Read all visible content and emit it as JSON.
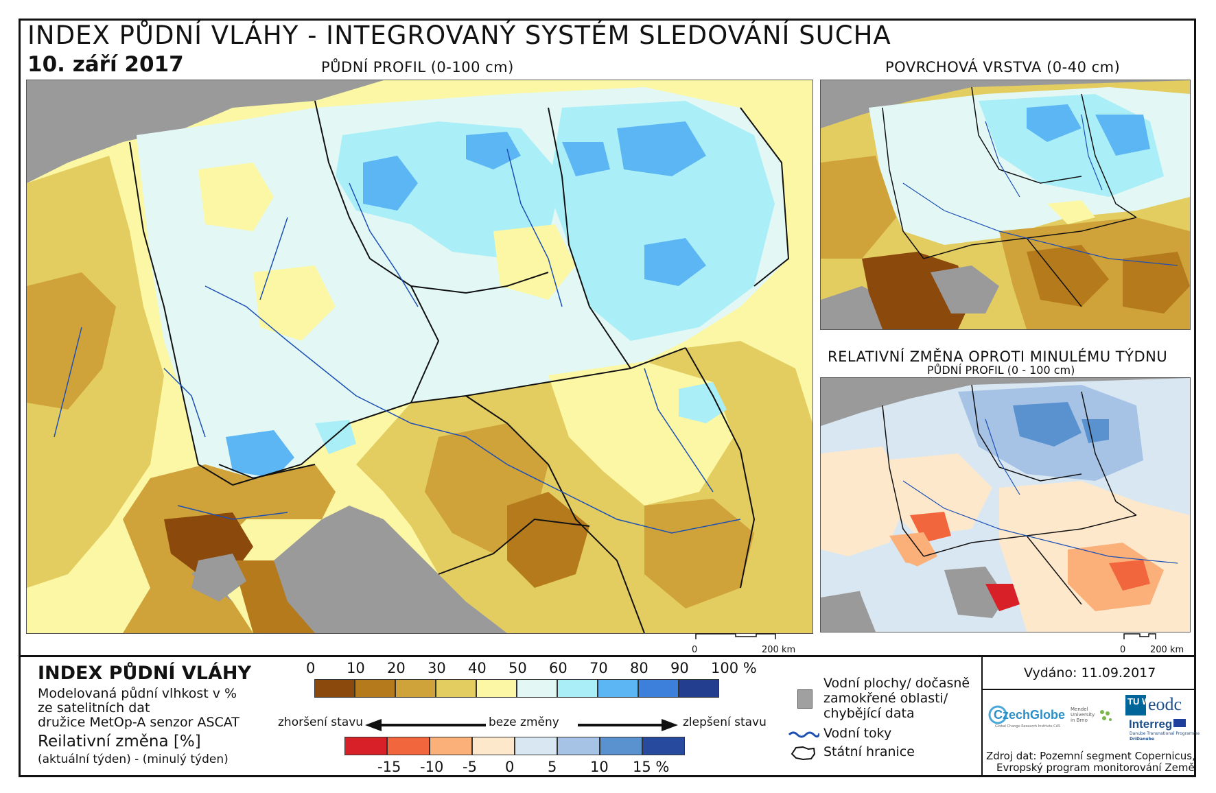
{
  "header": {
    "title": "INDEX PŮDNÍ VLÁHY - INTEGROVANÝ SYSTÉM SLEDOVÁNÍ SUCHA",
    "date": "10. září 2017"
  },
  "panels": {
    "main_title": "PŮDNÍ PROFIL (0-100 cm)",
    "surface_title": "POVRCHOVÁ VRSTVA (0-40 cm)",
    "change_title": "RELATIVNÍ ZMĚNA OPROTI MINULÉMU TÝDNU",
    "change_subtitle": "PŮDNÍ PROFIL (0 - 100 cm)"
  },
  "scale": {
    "zero": "0",
    "distance": "200 km"
  },
  "legend": {
    "index_title": "INDEX PŮDNÍ VLÁHY",
    "desc_line1": "Modelovaná půdní vlhkost v %",
    "desc_line2": "ze satelitních dat",
    "desc_line3": "družice MetOp-A senzor ASCAT",
    "change_title": "Reilativní změna [%]",
    "change_desc": "(aktuální týden) - (minulý týden)",
    "moisture_ticks": [
      "0",
      "10",
      "20",
      "30",
      "40",
      "50",
      "60",
      "70",
      "80",
      "90",
      "100 %"
    ],
    "moisture_colors": [
      "#8b4a0c",
      "#b57a1c",
      "#cfa23a",
      "#e3cc60",
      "#fbf7a4",
      "#e3f8f5",
      "#aaeef8",
      "#5db6f4",
      "#3d80dc",
      "#233e8e"
    ],
    "arrow_worse": "zhoršení stavu",
    "arrow_none": "beze změny",
    "arrow_better": "zlepšení stavu",
    "change_ticks": [
      "-15",
      "-10",
      "-5",
      "0",
      "5",
      "10",
      "15 %"
    ],
    "change_colors": [
      "#d72027",
      "#f2663d",
      "#fbb07a",
      "#fde8cb",
      "#d9e7f3",
      "#a6c3e6",
      "#5a92d0",
      "#274a9e"
    ],
    "water_label_1": "Vodní plochy/ dočasně",
    "water_label_2": "zamokřené oblasti/",
    "water_label_3": "chybějící data",
    "rivers_label": "Vodní toky",
    "borders_label": "Státní hranice",
    "water_color": "#a0a0a0",
    "river_color": "#1b4fb4"
  },
  "info": {
    "issued": "Vydáno: 11.09.2017",
    "source_1": "Zdroj dat: Pozemní segment Copernicus,",
    "source_2": "Evropský program monitorování Země"
  },
  "logos": {
    "czechglobe": "CzechGlobe",
    "czechglobe_sub": "Global Change Research Institute CAS",
    "mendel": "Mendel University in Brno",
    "tu": "TU WIEN",
    "eodc": "eodc",
    "interreg": "Interreg",
    "interreg_sub1": "Danube Transnational Programme",
    "interreg_sub2": "DriDanube"
  }
}
